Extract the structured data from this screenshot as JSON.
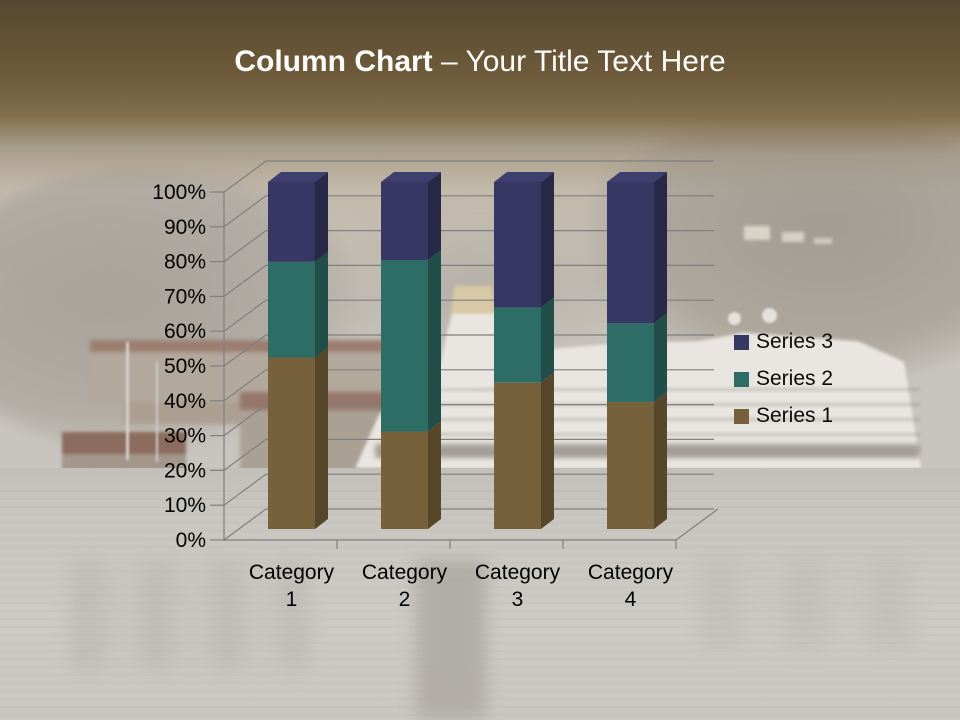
{
  "slide": {
    "title_bold": "Column Chart",
    "title_rest": " – Your Title Text Here"
  },
  "chart_data": {
    "type": "bar",
    "subtype": "3d-100%-stacked-column",
    "title": "Column Chart – Your Title Text Here",
    "categories": [
      "Category 1",
      "Category 2",
      "Category 3",
      "Category 4"
    ],
    "series": [
      {
        "name": "Series 1",
        "color": "#77613A",
        "values": [
          4.3,
          2.5,
          3.5,
          4.5
        ]
      },
      {
        "name": "Series 2",
        "color": "#2E6C66",
        "values": [
          2.4,
          4.4,
          1.8,
          2.8
        ]
      },
      {
        "name": "Series 3",
        "color": "#373763",
        "values": [
          2.0,
          2.0,
          3.0,
          5.0
        ]
      }
    ],
    "stacked_percent_by_category": [
      {
        "category": "Category 1",
        "Series 1": 49.4,
        "Series 2": 27.6,
        "Series 3": 23.0
      },
      {
        "category": "Category 2",
        "Series 1": 28.1,
        "Series 2": 49.4,
        "Series 3": 22.5
      },
      {
        "category": "Category 3",
        "Series 1": 42.2,
        "Series 2": 21.7,
        "Series 3": 36.1
      },
      {
        "category": "Category 4",
        "Series 1": 36.6,
        "Series 2": 22.8,
        "Series 3": 40.7
      }
    ],
    "xlabel": "",
    "ylabel": "",
    "ylim": [
      0,
      100
    ],
    "y_ticks": [
      "0%",
      "10%",
      "20%",
      "30%",
      "40%",
      "50%",
      "60%",
      "70%",
      "80%",
      "90%",
      "100%"
    ],
    "grid": true,
    "legend": [
      "Series 3",
      "Series 2",
      "Series 1"
    ],
    "legend_position": "right",
    "colors": {
      "axis_line": "#7f7f7f",
      "tick_label": "#000000",
      "title_text": "#fcfcfa",
      "header_brown_top": "#564830",
      "header_brown_bottom": "#84704f"
    }
  }
}
